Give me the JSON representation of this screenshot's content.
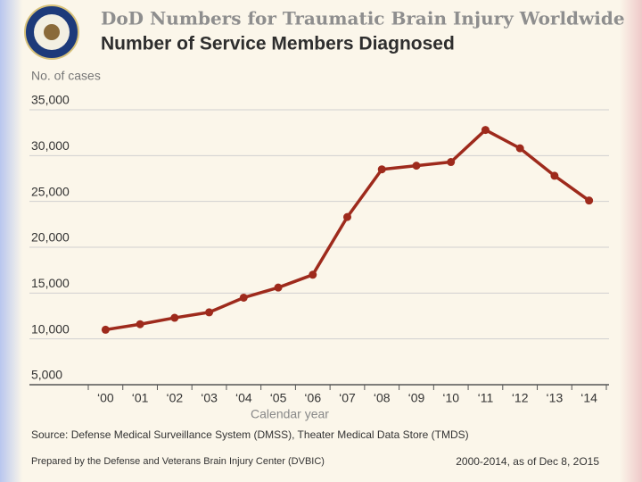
{
  "chart_data": {
    "type": "line",
    "title": "DoD Numbers for Traumatic Brain Injury Worldwide",
    "subtitle": "Number of Service Members Diagnosed",
    "y_label": "No. of cases",
    "x_label": "Calendar year",
    "categories": [
      "‘00",
      "‘01",
      "‘02",
      "‘03",
      "‘04",
      "‘05",
      "‘06",
      "‘07",
      "‘08",
      "‘09",
      "‘10",
      "‘11",
      "‘12",
      "‘13",
      "‘14"
    ],
    "series": [
      {
        "name": "Number of Service Members Diagnosed",
        "color": "#9e2a1c",
        "values": [
          11000,
          11600,
          12300,
          12900,
          14500,
          15600,
          17000,
          23300,
          28500,
          28900,
          29300,
          32800,
          30800,
          27800,
          25100
        ]
      }
    ],
    "ylim": [
      5000,
      35000
    ],
    "yticks": [
      {
        "value": 5000,
        "label": "5,000"
      },
      {
        "value": 10000,
        "label": "10,000"
      },
      {
        "value": 15000,
        "label": "15,000"
      },
      {
        "value": 20000,
        "label": "20,000"
      },
      {
        "value": 25000,
        "label": "25,000"
      },
      {
        "value": 30000,
        "label": "30,000"
      },
      {
        "value": 35000,
        "label": "35,000"
      }
    ],
    "grid": true,
    "source": "Source: Defense Medical Surveillance System (DMSS),  Theater Medical Data Store (TMDS)",
    "prepared_by": "Prepared by the Defense and Veterans Brain Injury Center (DVBIC)",
    "date_note": "2000-2014, as of Dec 8, 2O15"
  }
}
